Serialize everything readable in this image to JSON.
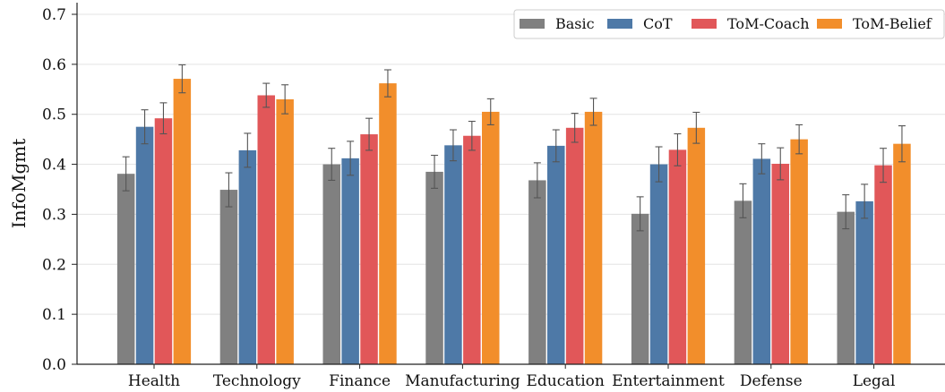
{
  "chart_data": {
    "type": "bar",
    "title": "",
    "xlabel": "",
    "ylabel": "InfoMgmt",
    "ylim": [
      0,
      0.7
    ],
    "yticks": [
      0.0,
      0.1,
      0.2,
      0.3,
      0.4,
      0.5,
      0.6,
      0.7
    ],
    "ytick_labels": [
      "0.0",
      "0.1",
      "0.2",
      "0.3",
      "0.4",
      "0.5",
      "0.6",
      "0.7"
    ],
    "grid": "y",
    "legend_position": "top-right",
    "categories": [
      "Health",
      "Technology",
      "Finance",
      "Manufacturing",
      "Education",
      "Entertainment",
      "Defense",
      "Legal"
    ],
    "series": [
      {
        "name": "Basic",
        "color": "#808080",
        "values": [
          0.381,
          0.349,
          0.4,
          0.385,
          0.368,
          0.301,
          0.327,
          0.305
        ],
        "errors": [
          0.034,
          0.034,
          0.032,
          0.033,
          0.035,
          0.034,
          0.034,
          0.034
        ]
      },
      {
        "name": "CoT",
        "color": "#4e79a7",
        "values": [
          0.475,
          0.428,
          0.412,
          0.438,
          0.437,
          0.4,
          0.411,
          0.326
        ],
        "errors": [
          0.034,
          0.034,
          0.034,
          0.031,
          0.032,
          0.035,
          0.03,
          0.034
        ]
      },
      {
        "name": "ToM-Coach",
        "color": "#e15759",
        "values": [
          0.492,
          0.538,
          0.46,
          0.457,
          0.473,
          0.429,
          0.401,
          0.398
        ],
        "errors": [
          0.031,
          0.024,
          0.032,
          0.029,
          0.029,
          0.032,
          0.032,
          0.034
        ]
      },
      {
        "name": "ToM-Belief",
        "color": "#f28e2b",
        "values": [
          0.571,
          0.53,
          0.562,
          0.505,
          0.505,
          0.473,
          0.45,
          0.441
        ],
        "errors": [
          0.028,
          0.029,
          0.027,
          0.026,
          0.027,
          0.031,
          0.029,
          0.036
        ]
      }
    ]
  }
}
